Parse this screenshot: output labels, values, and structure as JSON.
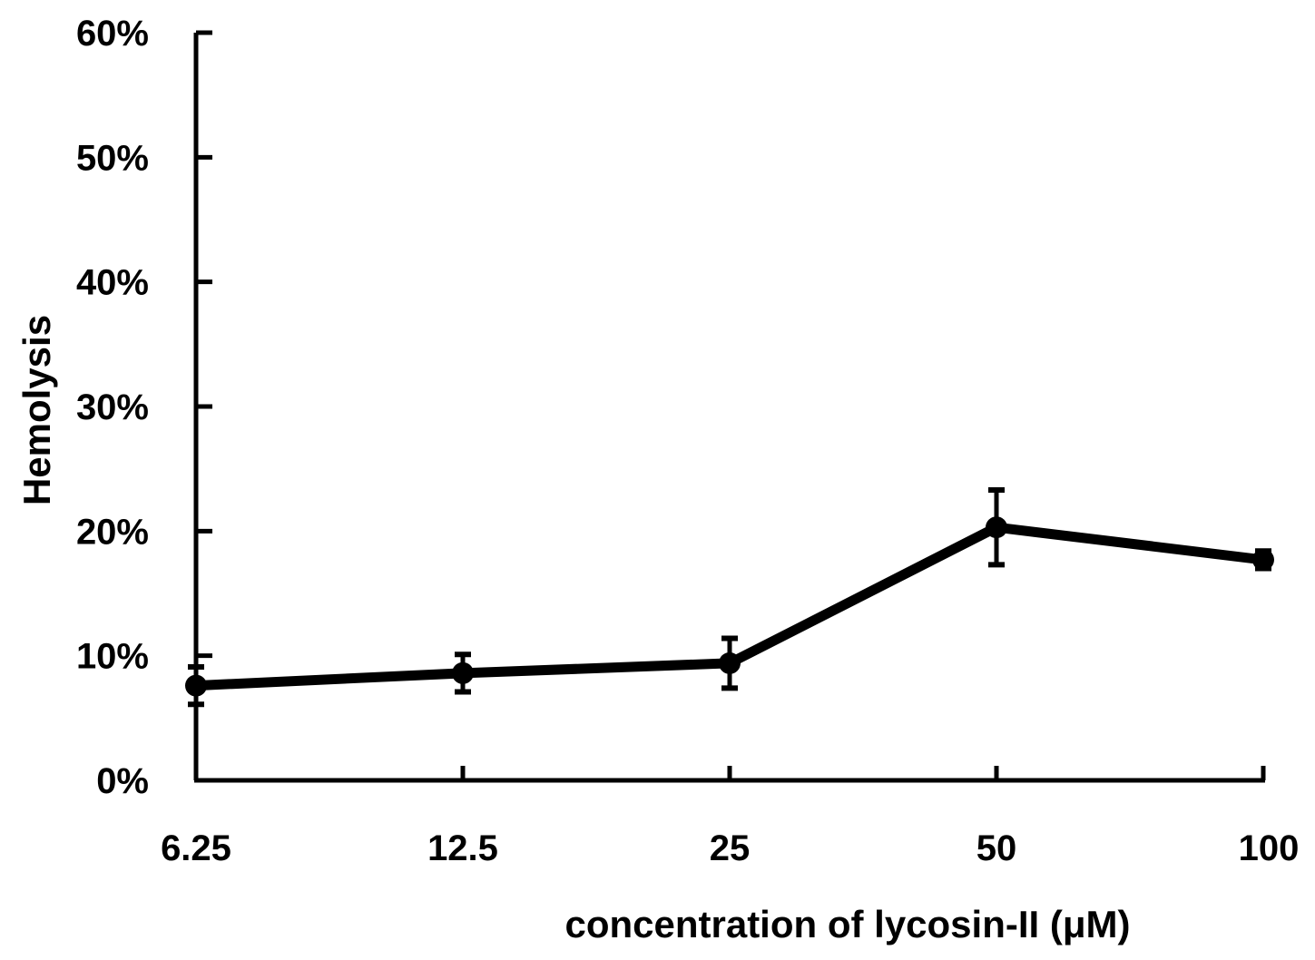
{
  "chart_data": {
    "type": "line",
    "title": "",
    "xlabel": "concentration of lycosin-II (μM)",
    "ylabel": "Hemolysis",
    "categories": [
      "6.25",
      "12.5",
      "25",
      "50",
      "100"
    ],
    "series": [
      {
        "values": [
          7.6,
          8.6,
          9.4,
          20.3,
          17.7
        ],
        "errors": [
          1.5,
          1.5,
          2.0,
          3.0,
          0.7
        ]
      }
    ],
    "ylim": [
      0,
      60
    ],
    "yticks": [
      0,
      10,
      20,
      30,
      40,
      50,
      60
    ],
    "ytick_labels": [
      "0%",
      "10%",
      "20%",
      "30%",
      "40%",
      "50%",
      "60%"
    ],
    "grid": false,
    "legend": "none",
    "line_color": "#000000"
  }
}
